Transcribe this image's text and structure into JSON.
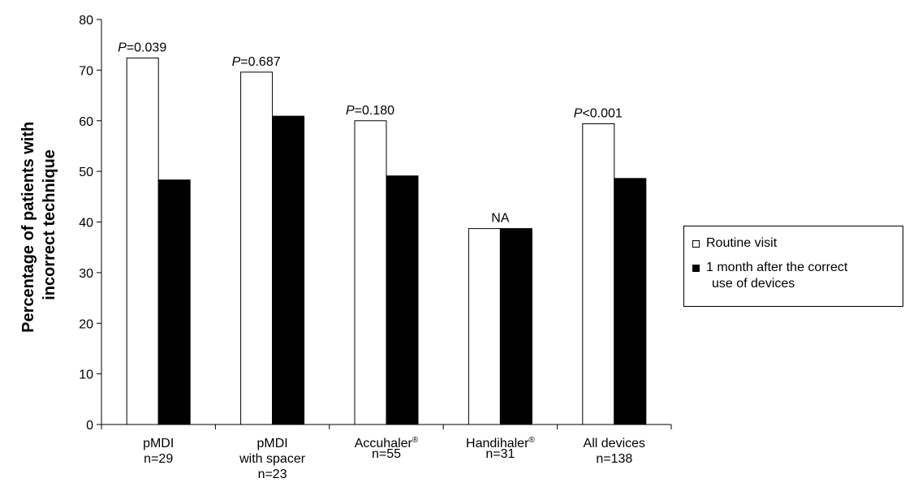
{
  "chart_data": {
    "type": "bar",
    "ylabel": [
      "Percentage of patients with",
      "incorrect technique"
    ],
    "ylim": [
      0,
      80
    ],
    "yticks": [
      0,
      10,
      20,
      30,
      40,
      50,
      60,
      70,
      80
    ],
    "categories": [
      [
        "pMDI",
        "n=29"
      ],
      [
        "pMDI",
        "with spacer",
        "n=23"
      ],
      [
        "Accuhaler",
        "n=55"
      ],
      [
        "Handihaler",
        "n=31"
      ],
      [
        "All devices",
        "n=138"
      ]
    ],
    "category_superscripts": [
      "",
      "",
      "®",
      "®",
      ""
    ],
    "series": [
      {
        "name": "Routine visit",
        "color": "#ffffff",
        "values": [
          72.4,
          69.6,
          60.0,
          38.7,
          59.4
        ]
      },
      {
        "name": "1 month after the correct use of devices",
        "color": "#000000",
        "values": [
          48.3,
          60.9,
          49.1,
          38.7,
          48.6
        ]
      }
    ],
    "annotations": [
      {
        "p": "P",
        "rest": "=0.039"
      },
      {
        "p": "P",
        "rest": "=0.687"
      },
      {
        "p": "P",
        "rest": "=0.180"
      },
      {
        "p": "",
        "rest": "NA"
      },
      {
        "p": "P",
        "rest": "<0.001"
      }
    ],
    "legend": {
      "position": "right",
      "items": [
        {
          "label": [
            "Routine visit"
          ],
          "color": "#ffffff"
        },
        {
          "label": [
            "1 month after the correct",
            "use of devices"
          ],
          "color": "#000000"
        }
      ]
    },
    "grid": false
  }
}
